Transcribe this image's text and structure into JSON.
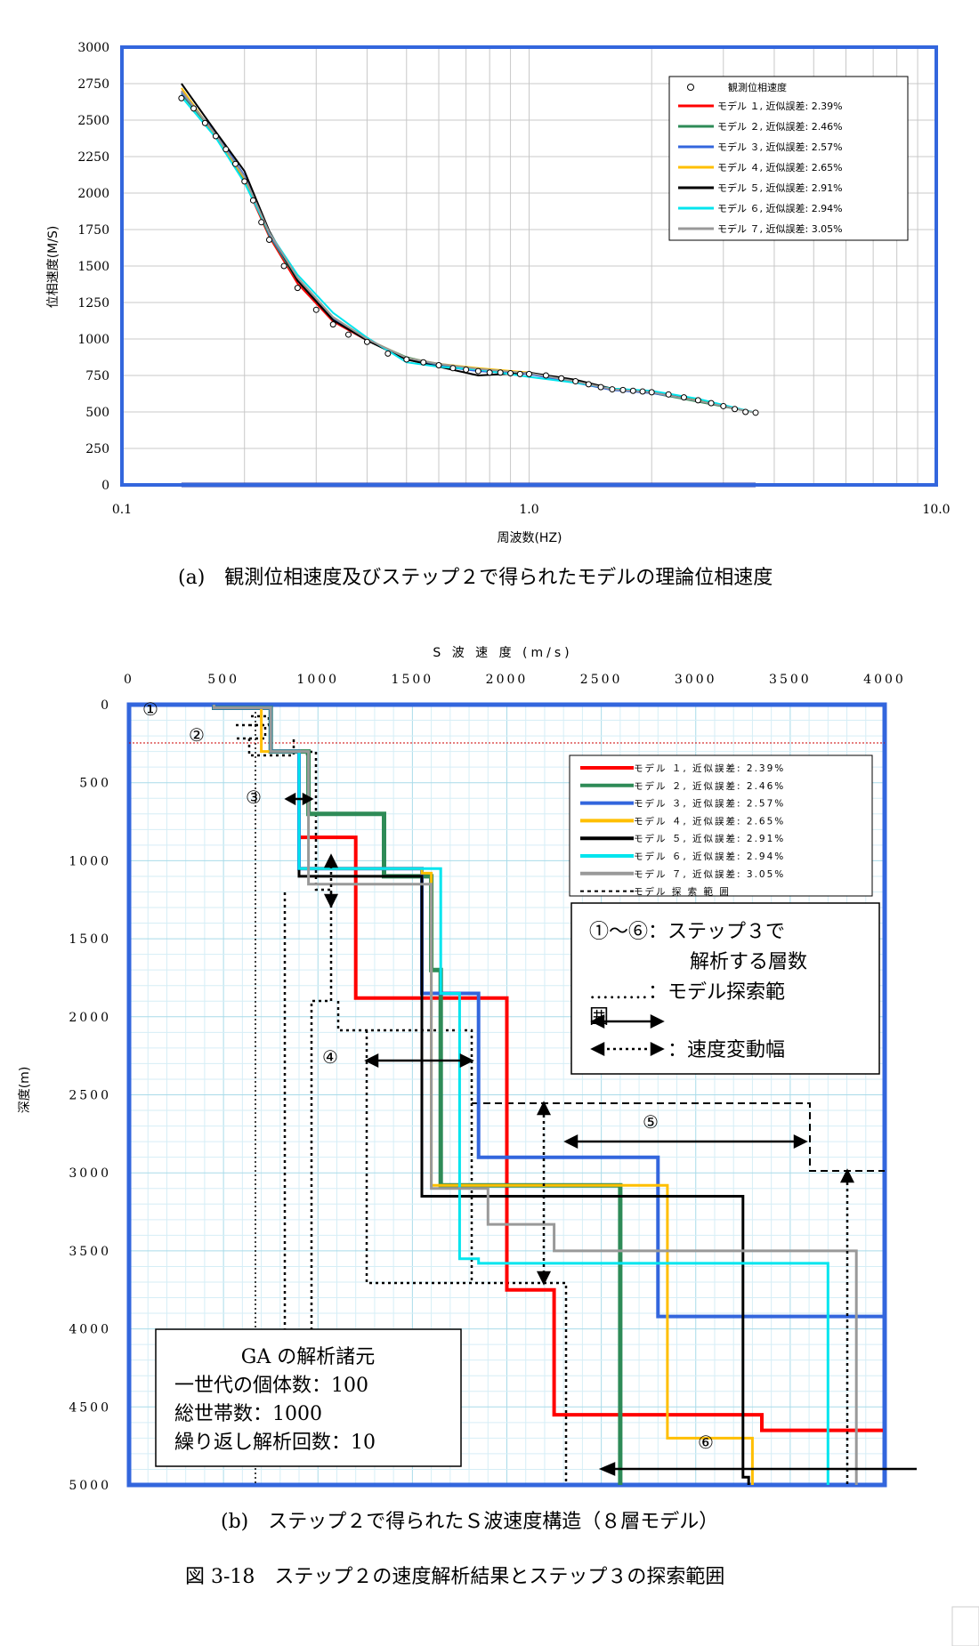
{
  "chart_data": [
    {
      "type": "line",
      "xlabel": "周波数(HZ)",
      "ylabel": "位相速度(M/S)",
      "x_scale": "log",
      "xlim": [
        0.1,
        10.0
      ],
      "ylim": [
        0,
        3000
      ],
      "x_ticks": [
        "0.1",
        "1.0",
        "10.0"
      ],
      "y_ticks": [
        "0",
        "250",
        "500",
        "750",
        "1000",
        "1250",
        "1500",
        "1750",
        "2000",
        "2250",
        "2500",
        "2750",
        "3000"
      ],
      "grid": true,
      "legend_position": "top-right",
      "caption": "(a)　観測位相速度及びステップ２で得られたモデルの理論位相速度",
      "observed": {
        "name": "観測位相速度",
        "x": [
          0.14,
          0.15,
          0.16,
          0.17,
          0.18,
          0.19,
          0.2,
          0.21,
          0.22,
          0.23,
          0.25,
          0.27,
          0.3,
          0.33,
          0.36,
          0.4,
          0.45,
          0.5,
          0.55,
          0.6,
          0.65,
          0.7,
          0.75,
          0.8,
          0.85,
          0.9,
          0.95,
          1.0,
          1.1,
          1.2,
          1.3,
          1.4,
          1.5,
          1.6,
          1.7,
          1.8,
          1.9,
          2.0,
          2.2,
          2.4,
          2.6,
          2.8,
          3.0,
          3.2,
          3.4,
          3.6
        ],
        "y": [
          2650,
          2580,
          2480,
          2390,
          2300,
          2200,
          2080,
          1950,
          1800,
          1680,
          1500,
          1350,
          1200,
          1100,
          1030,
          980,
          900,
          860,
          840,
          820,
          800,
          790,
          780,
          770,
          770,
          765,
          760,
          760,
          750,
          730,
          710,
          690,
          670,
          655,
          650,
          645,
          640,
          635,
          620,
          600,
          580,
          560,
          540,
          520,
          500,
          495
        ]
      },
      "series": [
        {
          "name": "モデル １, 近似誤差: 2.39%",
          "color": "#ff0000",
          "x": [
            0.14,
            0.17,
            0.2,
            0.23,
            0.27,
            0.33,
            0.4,
            0.5,
            0.6,
            0.75,
            1.0,
            1.3,
            1.6,
            2.0,
            2.6,
            3.6
          ],
          "y": [
            2700,
            2390,
            2080,
            1700,
            1380,
            1120,
            990,
            870,
            820,
            790,
            760,
            710,
            655,
            635,
            575,
            495
          ]
        },
        {
          "name": "モデル ２, 近似誤差: 2.46%",
          "color": "#2e8b57",
          "x": [
            0.14,
            0.17,
            0.2,
            0.23,
            0.27,
            0.33,
            0.4,
            0.5,
            0.6,
            0.75,
            1.0,
            1.3,
            1.6,
            2.0,
            2.6,
            3.6
          ],
          "y": [
            2680,
            2400,
            2090,
            1710,
            1400,
            1130,
            995,
            875,
            825,
            785,
            765,
            705,
            655,
            630,
            570,
            495
          ]
        },
        {
          "name": "モデル ３, 近似誤差: 2.57%",
          "color": "#3366dd",
          "x": [
            0.14,
            0.17,
            0.2,
            0.23,
            0.27,
            0.33,
            0.4,
            0.5,
            0.6,
            0.75,
            1.0,
            1.3,
            1.6,
            2.0,
            2.6,
            3.6
          ],
          "y": [
            2690,
            2410,
            2120,
            1720,
            1410,
            1140,
            1000,
            860,
            815,
            780,
            760,
            700,
            650,
            630,
            580,
            495
          ]
        },
        {
          "name": "モデル ４, 近似誤差: 2.65%",
          "color": "#ffbf00",
          "x": [
            0.14,
            0.17,
            0.2,
            0.23,
            0.27,
            0.33,
            0.4,
            0.5,
            0.6,
            0.75,
            1.0,
            1.3,
            1.6,
            2.0,
            2.6,
            3.6
          ],
          "y": [
            2720,
            2390,
            2100,
            1730,
            1420,
            1150,
            1000,
            870,
            830,
            800,
            770,
            710,
            660,
            640,
            580,
            495
          ]
        },
        {
          "name": "モデル ５, 近似誤差: 2.91%",
          "color": "#000000",
          "x": [
            0.14,
            0.17,
            0.2,
            0.23,
            0.27,
            0.33,
            0.4,
            0.5,
            0.6,
            0.75,
            1.0,
            1.3,
            1.6,
            2.0,
            2.6,
            3.6
          ],
          "y": [
            2750,
            2420,
            2150,
            1740,
            1400,
            1130,
            990,
            860,
            810,
            750,
            770,
            720,
            660,
            640,
            575,
            495
          ]
        },
        {
          "name": "モデル ６, 近似誤差: 2.94%",
          "color": "#00e5ee",
          "x": [
            0.14,
            0.17,
            0.2,
            0.23,
            0.27,
            0.33,
            0.4,
            0.5,
            0.6,
            0.75,
            1.0,
            1.3,
            1.6,
            2.0,
            2.6,
            3.6
          ],
          "y": [
            2660,
            2380,
            2070,
            1730,
            1440,
            1180,
            1010,
            840,
            810,
            790,
            740,
            700,
            660,
            645,
            590,
            495
          ]
        },
        {
          "name": "モデル ７, 近似誤差: 3.05%",
          "color": "#999999",
          "x": [
            0.14,
            0.17,
            0.2,
            0.23,
            0.27,
            0.33,
            0.4,
            0.5,
            0.6,
            0.75,
            1.0,
            1.3,
            1.6,
            2.0,
            2.6,
            3.6
          ],
          "y": [
            2700,
            2400,
            2110,
            1730,
            1420,
            1150,
            1000,
            870,
            830,
            795,
            765,
            710,
            655,
            635,
            575,
            495
          ]
        }
      ]
    },
    {
      "type": "line",
      "xlabel": "S 波 速 度 (m/s)",
      "ylabel": "深度(m)",
      "xlim": [
        0,
        4000
      ],
      "ylim": [
        5000,
        0
      ],
      "x_ticks": [
        "0",
        "500",
        "1000",
        "1500",
        "2000",
        "2500",
        "3000",
        "3500",
        "4000"
      ],
      "y_ticks": [
        "0",
        "500",
        "1000",
        "1500",
        "2000",
        "2500",
        "3000",
        "3500",
        "4000",
        "4500",
        "5000"
      ],
      "grid": true,
      "legend_position": "top-right",
      "caption": "(b)　ステップ２で得られたＳ波速度構造（８層モデル）",
      "series": [
        {
          "name": "モデル １, 近似誤差: 2.39%",
          "color": "#ff0000",
          "vs": [
            450,
            750,
            900,
            1200,
            2000,
            2250,
            3350,
            4000
          ],
          "depth": [
            20,
            300,
            850,
            1880,
            3750,
            4550,
            4650,
            5000
          ]
        },
        {
          "name": "モデル ２, 近似誤差: 2.46%",
          "color": "#2e8b57",
          "vs": [
            450,
            750,
            950,
            1350,
            1600,
            1650,
            2600,
            2600
          ],
          "depth": [
            20,
            300,
            700,
            1100,
            1700,
            3080,
            5000,
            5000
          ]
        },
        {
          "name": "モデル ３, 近似誤差: 2.57%",
          "color": "#3366dd",
          "vs": [
            450,
            750,
            900,
            1550,
            1850,
            2800,
            4000,
            4000
          ],
          "depth": [
            20,
            300,
            1050,
            1850,
            2900,
            3920,
            3970,
            5000
          ]
        },
        {
          "name": "モデル ４, 近似誤差: 2.65%",
          "color": "#ffbf00",
          "vs": [
            450,
            700,
            900,
            1550,
            1600,
            2850,
            3300,
            3300
          ],
          "depth": [
            20,
            300,
            1050,
            1080,
            3080,
            4700,
            5000,
            5000
          ]
        },
        {
          "name": "モデル ５, 近似誤差: 2.91%",
          "color": "#000000",
          "vs": [
            450,
            750,
            900,
            1550,
            3250,
            3280,
            3280,
            3280
          ],
          "depth": [
            20,
            300,
            1100,
            3150,
            4950,
            5000,
            5000,
            5000
          ]
        },
        {
          "name": "モデル ６, 近似誤差: 2.94%",
          "color": "#00e5ee",
          "vs": [
            450,
            750,
            900,
            1650,
            1750,
            1850,
            3700,
            3700
          ],
          "depth": [
            20,
            300,
            1050,
            1850,
            3550,
            3580,
            5000,
            5000
          ]
        },
        {
          "name": "モデル ７, 近似誤差: 3.05%",
          "color": "#999999",
          "vs": [
            450,
            750,
            950,
            1600,
            1900,
            2250,
            3850,
            3850
          ],
          "depth": [
            20,
            300,
            1150,
            3100,
            3330,
            3500,
            5000,
            5000
          ]
        },
        {
          "name": "モデル 探 索 範 囲",
          "color": "#000000",
          "dashed": true
        }
      ]
    }
  ],
  "info_box": {
    "line1": "①～⑥：ステップ３で",
    "line2": "解析する層数",
    "line3": "………：モデル探索範",
    "line4": "囲",
    "line5": "：速度変動幅"
  },
  "ga_box": {
    "title": "GA の解析諸元",
    "line1": "一世代の個体数：100",
    "line2": "総世帯数：1000",
    "line3": "繰り返し解析回数：10"
  },
  "layer_markers": [
    "①",
    "②",
    "③",
    "④",
    "⑤",
    "⑥"
  ],
  "figure_caption": "図 3-18　ステップ２の速度解析結果とステップ３の探索範囲"
}
